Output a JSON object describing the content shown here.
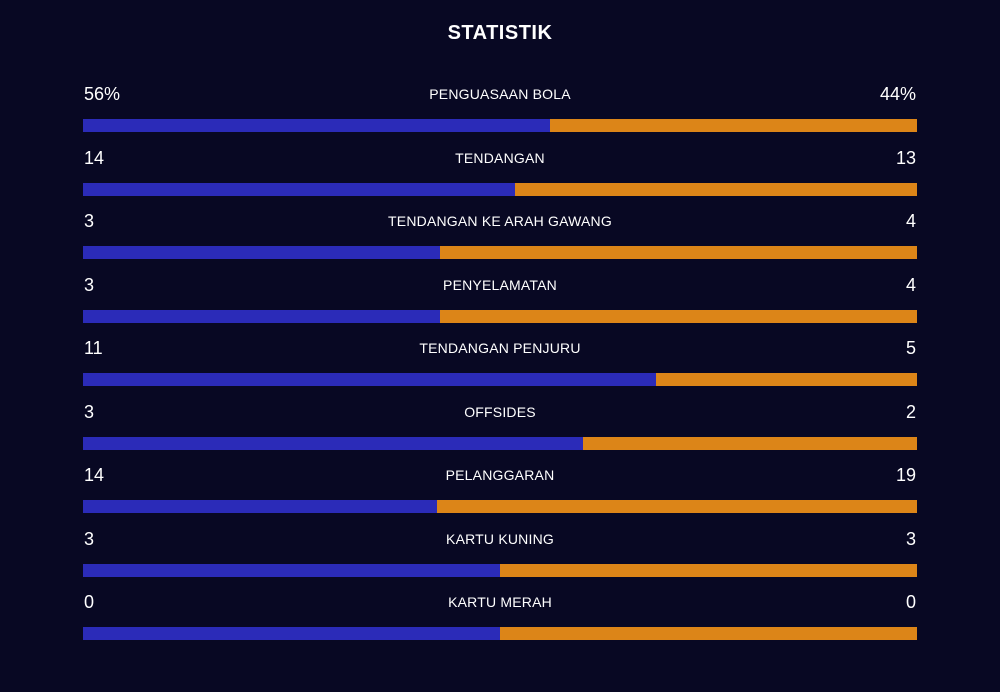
{
  "header": {
    "title": "STATISTIK"
  },
  "colors": {
    "home": "#2b2bb8",
    "away": "#dc8518",
    "background": "#080823"
  },
  "stats": [
    {
      "label": "PENGUASAAN BOLA",
      "home": "56%",
      "away": "44%",
      "home_value": 56,
      "away_value": 44
    },
    {
      "label": "TENDANGAN",
      "home": "14",
      "away": "13",
      "home_value": 14,
      "away_value": 13
    },
    {
      "label": "TENDANGAN KE ARAH GAWANG",
      "home": "3",
      "away": "4",
      "home_value": 3,
      "away_value": 4
    },
    {
      "label": "PENYELAMATAN",
      "home": "3",
      "away": "4",
      "home_value": 3,
      "away_value": 4
    },
    {
      "label": "TENDANGAN PENJURU",
      "home": "11",
      "away": "5",
      "home_value": 11,
      "away_value": 5
    },
    {
      "label": "OFFSIDES",
      "home": "3",
      "away": "2",
      "home_value": 3,
      "away_value": 2
    },
    {
      "label": "PELANGGARAN",
      "home": "14",
      "away": "19",
      "home_value": 14,
      "away_value": 19
    },
    {
      "label": "KARTU KUNING",
      "home": "3",
      "away": "3",
      "home_value": 3,
      "away_value": 3
    },
    {
      "label": "KARTU MERAH",
      "home": "0",
      "away": "0",
      "home_value": 0,
      "away_value": 0
    }
  ]
}
